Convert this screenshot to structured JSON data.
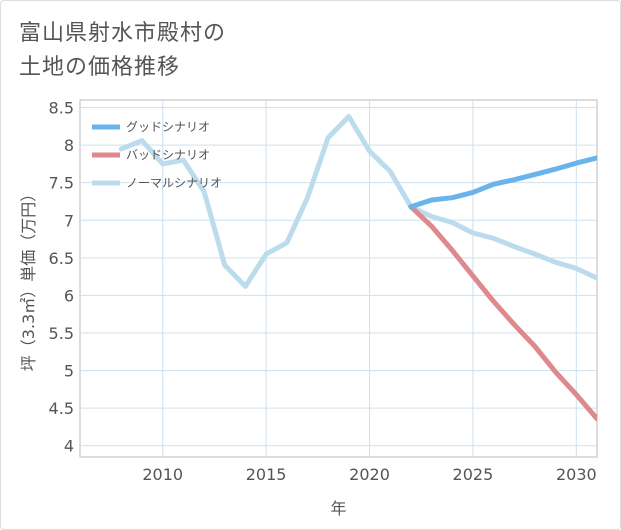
{
  "title_line1": "富山県射水市殿村の",
  "title_line2": "土地の価格推移",
  "chart_data": {
    "type": "line",
    "xlabel": "年",
    "ylabel": "坪（3.3㎡）単価（万円）",
    "xlim": [
      2006,
      2031
    ],
    "ylim": [
      3.85,
      8.6
    ],
    "xticks": [
      2010,
      2015,
      2020,
      2025,
      2030
    ],
    "yticks": [
      4,
      4.5,
      5,
      5.5,
      6,
      6.5,
      7,
      7.5,
      8,
      8.5
    ],
    "grid": true,
    "legend_position": "top-left",
    "series": [
      {
        "name": "グッドシナリオ",
        "color": "#6ab4ec",
        "x": [
          2022,
          2023,
          2024,
          2025,
          2026,
          2027,
          2028,
          2029,
          2030,
          2031
        ],
        "y": [
          7.18,
          7.27,
          7.3,
          7.37,
          7.48,
          7.54,
          7.61,
          7.68,
          7.76,
          7.83
        ]
      },
      {
        "name": "バッドシナリオ",
        "color": "#dc8a8d",
        "x": [
          2022,
          2023,
          2024,
          2025,
          2026,
          2027,
          2028,
          2029,
          2030,
          2031
        ],
        "y": [
          7.18,
          6.92,
          6.6,
          6.26,
          5.92,
          5.61,
          5.32,
          4.98,
          4.68,
          4.36
        ]
      },
      {
        "name": "ノーマルシナリオ",
        "color": "#bcdcee",
        "x": [
          2008,
          2009,
          2010,
          2011,
          2012,
          2013,
          2014,
          2015,
          2016,
          2017,
          2018,
          2019,
          2020,
          2021,
          2022,
          2023,
          2024,
          2025,
          2026,
          2027,
          2028,
          2029,
          2030,
          2031
        ],
        "y": [
          7.95,
          8.06,
          7.75,
          7.8,
          7.38,
          6.4,
          6.12,
          6.55,
          6.7,
          7.3,
          8.1,
          8.38,
          7.92,
          7.65,
          7.18,
          7.05,
          6.97,
          6.83,
          6.76,
          6.65,
          6.55,
          6.44,
          6.36,
          6.23
        ]
      }
    ]
  }
}
